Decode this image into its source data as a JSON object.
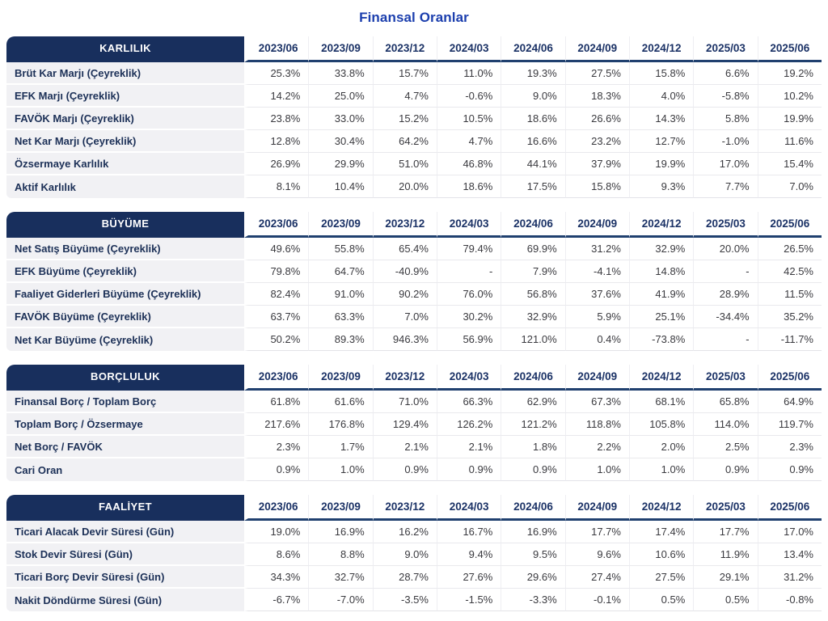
{
  "title": "Finansal Oranlar",
  "colors": {
    "navy": "#182F5D",
    "header_text": "#1B3266",
    "title_blue": "#1C3FAE",
    "label_bg": "#F1F1F4",
    "value_text": "#3A3A3F"
  },
  "chart_data": [
    {
      "type": "table",
      "key": "karlilik",
      "title": "KARLILIK",
      "columns": [
        "2023/06",
        "2023/09",
        "2023/12",
        "2024/03",
        "2024/06",
        "2024/09",
        "2024/12",
        "2025/03",
        "2025/06"
      ],
      "rows": [
        {
          "label": "Brüt Kar Marjı (Çeyreklik)",
          "values": [
            "25.3%",
            "33.8%",
            "15.7%",
            "11.0%",
            "19.3%",
            "27.5%",
            "15.8%",
            "6.6%",
            "19.2%"
          ]
        },
        {
          "label": "EFK Marjı (Çeyreklik)",
          "values": [
            "14.2%",
            "25.0%",
            "4.7%",
            "-0.6%",
            "9.0%",
            "18.3%",
            "4.0%",
            "-5.8%",
            "10.2%"
          ]
        },
        {
          "label": "FAVÖK Marjı (Çeyreklik)",
          "values": [
            "23.8%",
            "33.0%",
            "15.2%",
            "10.5%",
            "18.6%",
            "26.6%",
            "14.3%",
            "5.8%",
            "19.9%"
          ]
        },
        {
          "label": "Net Kar Marjı (Çeyreklik)",
          "values": [
            "12.8%",
            "30.4%",
            "64.2%",
            "4.7%",
            "16.6%",
            "23.2%",
            "12.7%",
            "-1.0%",
            "11.6%"
          ]
        },
        {
          "label": "Özsermaye Karlılık",
          "values": [
            "26.9%",
            "29.9%",
            "51.0%",
            "46.8%",
            "44.1%",
            "37.9%",
            "19.9%",
            "17.0%",
            "15.4%"
          ]
        },
        {
          "label": "Aktif Karlılık",
          "values": [
            "8.1%",
            "10.4%",
            "20.0%",
            "18.6%",
            "17.5%",
            "15.8%",
            "9.3%",
            "7.7%",
            "7.0%"
          ]
        }
      ]
    },
    {
      "type": "table",
      "key": "buyume",
      "title": "BÜYÜME",
      "columns": [
        "2023/06",
        "2023/09",
        "2023/12",
        "2024/03",
        "2024/06",
        "2024/09",
        "2024/12",
        "2025/03",
        "2025/06"
      ],
      "rows": [
        {
          "label": "Net Satış Büyüme (Çeyreklik)",
          "values": [
            "49.6%",
            "55.8%",
            "65.4%",
            "79.4%",
            "69.9%",
            "31.2%",
            "32.9%",
            "20.0%",
            "26.5%"
          ]
        },
        {
          "label": "EFK Büyüme (Çeyreklik)",
          "values": [
            "79.8%",
            "64.7%",
            "-40.9%",
            "-",
            "7.9%",
            "-4.1%",
            "14.8%",
            "-",
            "42.5%"
          ]
        },
        {
          "label": "Faaliyet Giderleri Büyüme (Çeyreklik)",
          "values": [
            "82.4%",
            "91.0%",
            "90.2%",
            "76.0%",
            "56.8%",
            "37.6%",
            "41.9%",
            "28.9%",
            "11.5%"
          ]
        },
        {
          "label": "FAVÖK Büyüme (Çeyreklik)",
          "values": [
            "63.7%",
            "63.3%",
            "7.0%",
            "30.2%",
            "32.9%",
            "5.9%",
            "25.1%",
            "-34.4%",
            "35.2%"
          ]
        },
        {
          "label": "Net Kar Büyüme (Çeyreklik)",
          "values": [
            "50.2%",
            "89.3%",
            "946.3%",
            "56.9%",
            "121.0%",
            "0.4%",
            "-73.8%",
            "-",
            "-11.7%"
          ]
        }
      ]
    },
    {
      "type": "table",
      "key": "borcluluk",
      "title": "BORÇLULUK",
      "columns": [
        "2023/06",
        "2023/09",
        "2023/12",
        "2024/03",
        "2024/06",
        "2024/09",
        "2024/12",
        "2025/03",
        "2025/06"
      ],
      "rows": [
        {
          "label": "Finansal Borç / Toplam Borç",
          "values": [
            "61.8%",
            "61.6%",
            "71.0%",
            "66.3%",
            "62.9%",
            "67.3%",
            "68.1%",
            "65.8%",
            "64.9%"
          ]
        },
        {
          "label": "Toplam Borç / Özsermaye",
          "values": [
            "217.6%",
            "176.8%",
            "129.4%",
            "126.2%",
            "121.2%",
            "118.8%",
            "105.8%",
            "114.0%",
            "119.7%"
          ]
        },
        {
          "label": "Net Borç / FAVÖK",
          "values": [
            "2.3%",
            "1.7%",
            "2.1%",
            "2.1%",
            "1.8%",
            "2.2%",
            "2.0%",
            "2.5%",
            "2.3%"
          ]
        },
        {
          "label": "Cari Oran",
          "values": [
            "0.9%",
            "1.0%",
            "0.9%",
            "0.9%",
            "0.9%",
            "1.0%",
            "1.0%",
            "0.9%",
            "0.9%"
          ]
        }
      ]
    },
    {
      "type": "table",
      "key": "faaliyet",
      "title": "FAALİYET",
      "columns": [
        "2023/06",
        "2023/09",
        "2023/12",
        "2024/03",
        "2024/06",
        "2024/09",
        "2024/12",
        "2025/03",
        "2025/06"
      ],
      "rows": [
        {
          "label": "Ticari Alacak Devir Süresi (Gün)",
          "values": [
            "19.0%",
            "16.9%",
            "16.2%",
            "16.7%",
            "16.9%",
            "17.7%",
            "17.4%",
            "17.7%",
            "17.0%"
          ]
        },
        {
          "label": "Stok Devir Süresi (Gün)",
          "values": [
            "8.6%",
            "8.8%",
            "9.0%",
            "9.4%",
            "9.5%",
            "9.6%",
            "10.6%",
            "11.9%",
            "13.4%"
          ]
        },
        {
          "label": "Ticari Borç Devir Süresi (Gün)",
          "values": [
            "34.3%",
            "32.7%",
            "28.7%",
            "27.6%",
            "29.6%",
            "27.4%",
            "27.5%",
            "29.1%",
            "31.2%"
          ]
        },
        {
          "label": "Nakit Döndürme Süresi (Gün)",
          "values": [
            "-6.7%",
            "-7.0%",
            "-3.5%",
            "-1.5%",
            "-3.3%",
            "-0.1%",
            "0.5%",
            "0.5%",
            "-0.8%"
          ]
        }
      ]
    }
  ]
}
